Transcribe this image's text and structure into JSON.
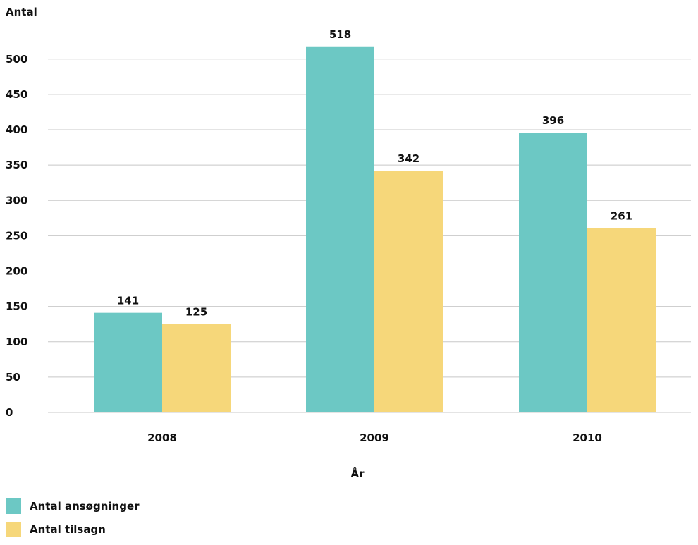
{
  "chart_data": {
    "type": "bar",
    "categories": [
      "2008",
      "2009",
      "2010"
    ],
    "series": [
      {
        "name": "Antal ansøgninger",
        "color": "#6cc8c4",
        "values": [
          141,
          518,
          396
        ]
      },
      {
        "name": "Antal tilsagn",
        "color": "#f6d77a",
        "values": [
          125,
          342,
          261
        ]
      }
    ],
    "xlabel": "År",
    "ylabel": "Antal",
    "ylim": [
      0,
      500
    ],
    "yticks": [
      0,
      50,
      100,
      150,
      200,
      250,
      300,
      350,
      400,
      450,
      500
    ],
    "grid": true,
    "legend_position": "bottom-left",
    "gridline_color": "#c8c8c8"
  }
}
